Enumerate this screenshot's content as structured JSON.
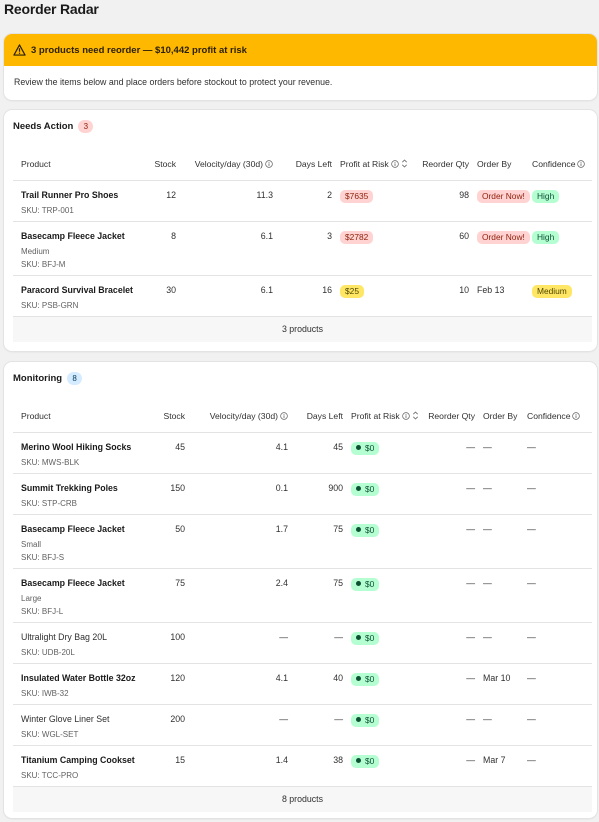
{
  "page": {
    "title": "Reorder Radar"
  },
  "banner": {
    "headline": "3 products need reorder — $10,442 profit at risk",
    "body": "Review the items below and place orders before stockout to protect your revenue."
  },
  "columns": {
    "product": "Product",
    "stock": "Stock",
    "velocity": "Velocity/day (30d)",
    "days_left": "Days Left",
    "profit_at_risk": "Profit at Risk",
    "reorder_qty": "Reorder Qty",
    "order_by": "Order By",
    "confidence": "Confidence"
  },
  "needs_action": {
    "title": "Needs Action",
    "count": "3",
    "footer": "3 products",
    "rows": [
      {
        "name": "Trail Runner Pro Shoes",
        "variant": "",
        "sku": "SKU: TRP-001",
        "stock": "12",
        "velocity": "11.3",
        "days_left": "2",
        "profit": "$7635",
        "reorder_qty": "98",
        "order_by": "Order Now!",
        "confidence": "High"
      },
      {
        "name": "Basecamp Fleece Jacket",
        "variant": "Medium",
        "sku": "SKU: BFJ-M",
        "stock": "8",
        "velocity": "6.1",
        "days_left": "3",
        "profit": "$2782",
        "reorder_qty": "60",
        "order_by": "Order Now!",
        "confidence": "High"
      },
      {
        "name": "Paracord Survival Bracelet",
        "variant": "",
        "sku": "SKU: PSB-GRN",
        "stock": "30",
        "velocity": "6.1",
        "days_left": "16",
        "profit": "$25",
        "reorder_qty": "10",
        "order_by": "Feb 13",
        "confidence": "Medium"
      }
    ]
  },
  "monitoring": {
    "title": "Monitoring",
    "count": "8",
    "footer": "8 products",
    "rows": [
      {
        "name": "Merino Wool Hiking Socks",
        "variant": "",
        "sku": "SKU: MWS-BLK",
        "stock": "45",
        "velocity": "4.1",
        "days_left": "45",
        "profit": "$0",
        "reorder_qty": "—",
        "order_by": "—",
        "confidence": "—"
      },
      {
        "name": "Summit Trekking Poles",
        "variant": "",
        "sku": "SKU: STP-CRB",
        "stock": "150",
        "velocity": "0.1",
        "days_left": "900",
        "profit": "$0",
        "reorder_qty": "—",
        "order_by": "—",
        "confidence": "—"
      },
      {
        "name": "Basecamp Fleece Jacket",
        "variant": "Small",
        "sku": "SKU: BFJ-S",
        "stock": "50",
        "velocity": "1.7",
        "days_left": "75",
        "profit": "$0",
        "reorder_qty": "—",
        "order_by": "—",
        "confidence": "—"
      },
      {
        "name": "Basecamp Fleece Jacket",
        "variant": "Large",
        "sku": "SKU: BFJ-L",
        "stock": "75",
        "velocity": "2.4",
        "days_left": "75",
        "profit": "$0",
        "reorder_qty": "—",
        "order_by": "—",
        "confidence": "—"
      },
      {
        "name": "Ultralight Dry Bag 20L",
        "variant": "",
        "sku": "SKU: UDB-20L",
        "stock": "100",
        "velocity": "—",
        "days_left": "—",
        "profit": "$0",
        "reorder_qty": "—",
        "order_by": "—",
        "confidence": "—"
      },
      {
        "name": "Insulated Water Bottle 32oz",
        "variant": "",
        "sku": "SKU: IWB-32",
        "stock": "120",
        "velocity": "4.1",
        "days_left": "40",
        "profit": "$0",
        "reorder_qty": "—",
        "order_by": "Mar 10",
        "confidence": "—"
      },
      {
        "name": "Winter Glove Liner Set",
        "variant": "",
        "sku": "SKU: WGL-SET",
        "stock": "200",
        "velocity": "—",
        "days_left": "—",
        "profit": "$0",
        "reorder_qty": "—",
        "order_by": "—",
        "confidence": "—"
      },
      {
        "name": "Titanium Camping Cookset",
        "variant": "",
        "sku": "SKU: TCC-PRO",
        "stock": "15",
        "velocity": "1.4",
        "days_left": "38",
        "profit": "$0",
        "reorder_qty": "—",
        "order_by": "Mar 7",
        "confidence": "—"
      }
    ]
  },
  "colors": {
    "banner": "#ffb800",
    "critical": "#fed3d1",
    "warning": "#ffe665",
    "success": "#b4fed2",
    "info": "#d5ebff"
  },
  "icons": [
    "warning-icon",
    "info-icon",
    "sort-icon"
  ]
}
